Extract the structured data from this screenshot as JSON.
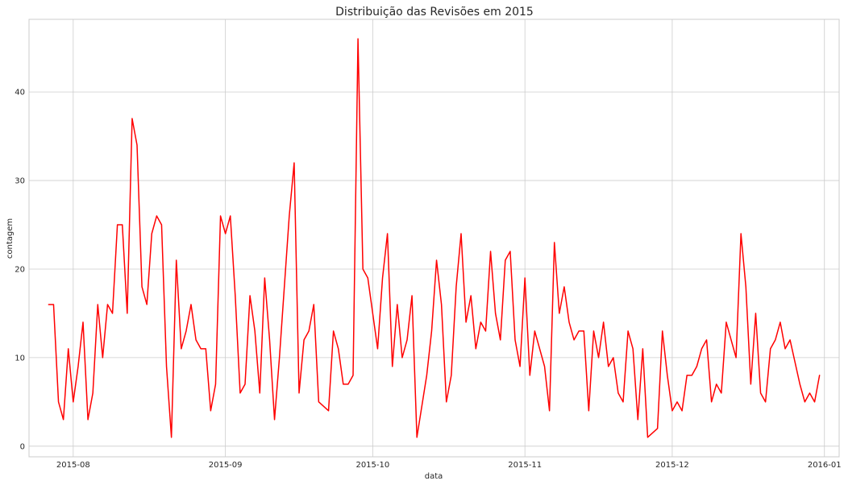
{
  "chart_data": {
    "type": "line",
    "title": "Distribuição das Revisões em 2015",
    "xlabel": "data",
    "ylabel": "contagem",
    "x_type": "date",
    "xlim": [
      "2015-07-23",
      "2016-01-04"
    ],
    "ylim": [
      -1.2,
      48.2
    ],
    "grid": true,
    "x_ticks": [
      {
        "date": "2015-08-01",
        "label": "2015-08"
      },
      {
        "date": "2015-09-01",
        "label": "2015-09"
      },
      {
        "date": "2015-10-01",
        "label": "2015-10"
      },
      {
        "date": "2015-11-01",
        "label": "2015-11"
      },
      {
        "date": "2015-12-01",
        "label": "2015-12"
      },
      {
        "date": "2016-01-01",
        "label": "2016-01"
      }
    ],
    "y_ticks": [
      0,
      10,
      20,
      30,
      40
    ],
    "series": [
      {
        "color": "#ff0000",
        "points": [
          [
            "2015-07-27",
            16
          ],
          [
            "2015-07-28",
            16
          ],
          [
            "2015-07-29",
            5
          ],
          [
            "2015-07-30",
            3
          ],
          [
            "2015-07-31",
            11
          ],
          [
            "2015-08-01",
            5
          ],
          [
            "2015-08-02",
            9
          ],
          [
            "2015-08-03",
            14
          ],
          [
            "2015-08-04",
            3
          ],
          [
            "2015-08-05",
            6
          ],
          [
            "2015-08-06",
            16
          ],
          [
            "2015-08-07",
            10
          ],
          [
            "2015-08-08",
            16
          ],
          [
            "2015-08-09",
            15
          ],
          [
            "2015-08-10",
            25
          ],
          [
            "2015-08-11",
            25
          ],
          [
            "2015-08-12",
            15
          ],
          [
            "2015-08-13",
            37
          ],
          [
            "2015-08-14",
            34
          ],
          [
            "2015-08-15",
            18
          ],
          [
            "2015-08-16",
            16
          ],
          [
            "2015-08-17",
            24
          ],
          [
            "2015-08-18",
            26
          ],
          [
            "2015-08-19",
            25
          ],
          [
            "2015-08-20",
            9
          ],
          [
            "2015-08-21",
            1
          ],
          [
            "2015-08-22",
            21
          ],
          [
            "2015-08-23",
            11
          ],
          [
            "2015-08-24",
            13
          ],
          [
            "2015-08-25",
            16
          ],
          [
            "2015-08-26",
            12
          ],
          [
            "2015-08-27",
            11
          ],
          [
            "2015-08-28",
            11
          ],
          [
            "2015-08-29",
            4
          ],
          [
            "2015-08-30",
            7
          ],
          [
            "2015-08-31",
            26
          ],
          [
            "2015-09-01",
            24
          ],
          [
            "2015-09-02",
            26
          ],
          [
            "2015-09-03",
            17
          ],
          [
            "2015-09-04",
            6
          ],
          [
            "2015-09-05",
            7
          ],
          [
            "2015-09-06",
            17
          ],
          [
            "2015-09-07",
            13
          ],
          [
            "2015-09-08",
            6
          ],
          [
            "2015-09-09",
            19
          ],
          [
            "2015-09-10",
            12
          ],
          [
            "2015-09-11",
            3
          ],
          [
            "2015-09-12",
            10
          ],
          [
            "2015-09-14",
            26
          ],
          [
            "2015-09-15",
            32
          ],
          [
            "2015-09-16",
            6
          ],
          [
            "2015-09-17",
            12
          ],
          [
            "2015-09-18",
            13
          ],
          [
            "2015-09-19",
            16
          ],
          [
            "2015-09-20",
            5
          ],
          [
            "2015-09-22",
            4
          ],
          [
            "2015-09-23",
            13
          ],
          [
            "2015-09-24",
            11
          ],
          [
            "2015-09-25",
            7
          ],
          [
            "2015-09-26",
            7
          ],
          [
            "2015-09-27",
            8
          ],
          [
            "2015-09-28",
            46
          ],
          [
            "2015-09-29",
            20
          ],
          [
            "2015-09-30",
            19
          ],
          [
            "2015-10-01",
            15
          ],
          [
            "2015-10-02",
            11
          ],
          [
            "2015-10-03",
            19
          ],
          [
            "2015-10-04",
            24
          ],
          [
            "2015-10-05",
            9
          ],
          [
            "2015-10-06",
            16
          ],
          [
            "2015-10-07",
            10
          ],
          [
            "2015-10-08",
            12
          ],
          [
            "2015-10-09",
            17
          ],
          [
            "2015-10-10",
            1
          ],
          [
            "2015-10-12",
            8
          ],
          [
            "2015-10-13",
            13
          ],
          [
            "2015-10-14",
            21
          ],
          [
            "2015-10-15",
            16
          ],
          [
            "2015-10-16",
            5
          ],
          [
            "2015-10-17",
            8
          ],
          [
            "2015-10-18",
            18
          ],
          [
            "2015-10-19",
            24
          ],
          [
            "2015-10-20",
            14
          ],
          [
            "2015-10-21",
            17
          ],
          [
            "2015-10-22",
            11
          ],
          [
            "2015-10-23",
            14
          ],
          [
            "2015-10-24",
            13
          ],
          [
            "2015-10-25",
            22
          ],
          [
            "2015-10-26",
            15
          ],
          [
            "2015-10-27",
            12
          ],
          [
            "2015-10-28",
            21
          ],
          [
            "2015-10-29",
            22
          ],
          [
            "2015-10-30",
            12
          ],
          [
            "2015-10-31",
            9
          ],
          [
            "2015-11-01",
            19
          ],
          [
            "2015-11-02",
            8
          ],
          [
            "2015-11-03",
            13
          ],
          [
            "2015-11-05",
            9
          ],
          [
            "2015-11-06",
            4
          ],
          [
            "2015-11-07",
            23
          ],
          [
            "2015-11-08",
            15
          ],
          [
            "2015-11-09",
            18
          ],
          [
            "2015-11-10",
            14
          ],
          [
            "2015-11-11",
            12
          ],
          [
            "2015-11-12",
            13
          ],
          [
            "2015-11-13",
            13
          ],
          [
            "2015-11-14",
            4
          ],
          [
            "2015-11-15",
            13
          ],
          [
            "2015-11-16",
            10
          ],
          [
            "2015-11-17",
            14
          ],
          [
            "2015-11-18",
            9
          ],
          [
            "2015-11-19",
            10
          ],
          [
            "2015-11-20",
            6
          ],
          [
            "2015-11-21",
            5
          ],
          [
            "2015-11-22",
            13
          ],
          [
            "2015-11-23",
            11
          ],
          [
            "2015-11-24",
            3
          ],
          [
            "2015-11-25",
            11
          ],
          [
            "2015-11-26",
            1
          ],
          [
            "2015-11-28",
            2
          ],
          [
            "2015-11-29",
            13
          ],
          [
            "2015-11-30",
            8
          ],
          [
            "2015-12-01",
            4
          ],
          [
            "2015-12-02",
            5
          ],
          [
            "2015-12-03",
            4
          ],
          [
            "2015-12-04",
            8
          ],
          [
            "2015-12-05",
            8
          ],
          [
            "2015-12-06",
            9
          ],
          [
            "2015-12-07",
            11
          ],
          [
            "2015-12-08",
            12
          ],
          [
            "2015-12-09",
            5
          ],
          [
            "2015-12-10",
            7
          ],
          [
            "2015-12-11",
            6
          ],
          [
            "2015-12-12",
            14
          ],
          [
            "2015-12-14",
            10
          ],
          [
            "2015-12-15",
            24
          ],
          [
            "2015-12-16",
            18
          ],
          [
            "2015-12-17",
            7
          ],
          [
            "2015-12-18",
            15
          ],
          [
            "2015-12-19",
            6
          ],
          [
            "2015-12-20",
            5
          ],
          [
            "2015-12-21",
            11
          ],
          [
            "2015-12-22",
            12
          ],
          [
            "2015-12-23",
            14
          ],
          [
            "2015-12-24",
            11
          ],
          [
            "2015-12-25",
            12
          ],
          [
            "2015-12-27",
            7
          ],
          [
            "2015-12-28",
            5
          ],
          [
            "2015-12-29",
            6
          ],
          [
            "2015-12-30",
            5
          ],
          [
            "2015-12-31",
            8
          ]
        ]
      }
    ]
  }
}
